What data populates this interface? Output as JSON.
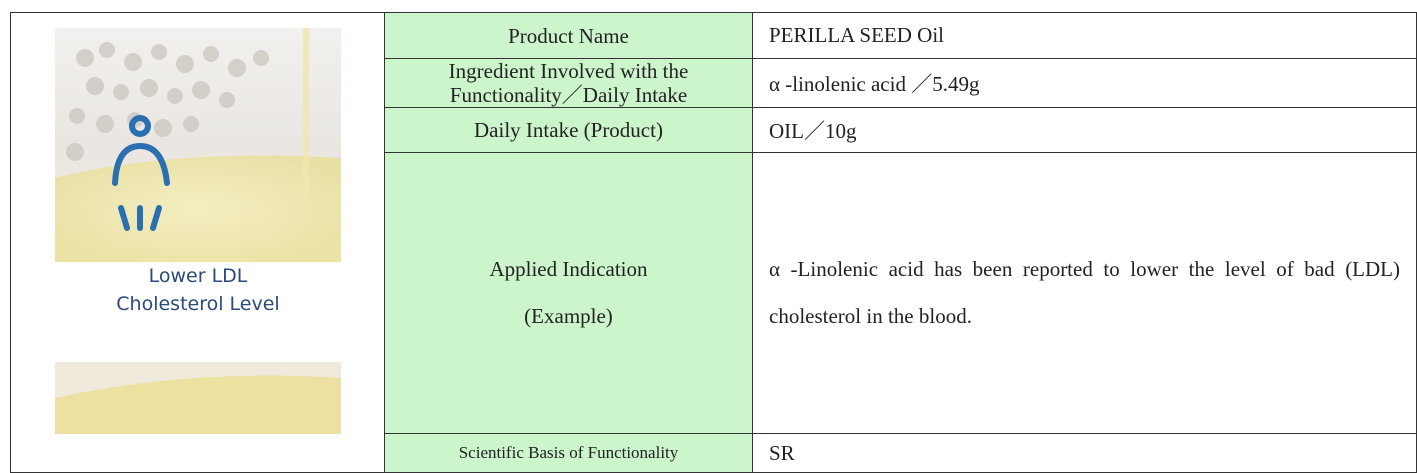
{
  "image": {
    "caption": [
      "Lower LDL",
      "Cholesterol Level"
    ]
  },
  "table": {
    "rows": [
      {
        "label": "Product Name",
        "value": "PERILLA SEED Oil"
      },
      {
        "label": "Ingredient Involved with the Functionality／Daily Intake",
        "value": "α -linolenic acid ／5.49g"
      },
      {
        "label": "Daily Intake (Product)",
        "value": "OIL／10g"
      },
      {
        "label_lines": [
          "Applied Indication",
          "(Example)"
        ],
        "value": "α -Linolenic acid has been reported to lower the level of bad (LDL) cholesterol in the blood."
      },
      {
        "label": "Scientific Basis of Functionality",
        "value": "SR"
      }
    ]
  }
}
